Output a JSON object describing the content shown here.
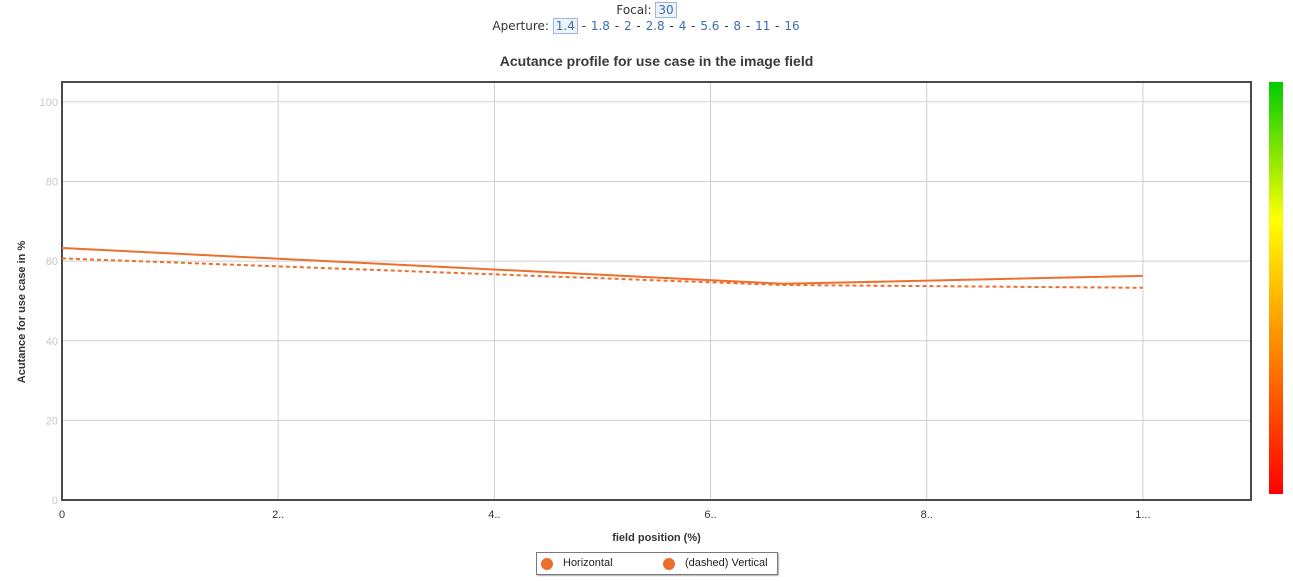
{
  "controls": {
    "focal_label": "Focal:",
    "focal_values": [
      "30"
    ],
    "aperture_label": "Aperture:",
    "aperture_values": [
      "1.4",
      "1.8",
      "2",
      "2.8",
      "4",
      "5.6",
      "8",
      "11",
      "16"
    ],
    "aperture_selected": "1.4",
    "separator": "-"
  },
  "chart_data": {
    "type": "line",
    "title": "Acutance profile for use case in the image field",
    "xlabel": "field position (%)",
    "ylabel": "Acutance for use case in %",
    "x_tick_labels": [
      "0",
      "2..",
      "4..",
      "6..",
      "8..",
      "1..."
    ],
    "x_ticks": [
      0,
      20,
      40,
      60,
      80,
      100
    ],
    "xlim": [
      0,
      110
    ],
    "y_ticks": [
      0,
      20,
      40,
      60,
      80,
      100
    ],
    "ylim": [
      0,
      105
    ],
    "grid": true,
    "series": [
      {
        "name": "Horizontal",
        "color": "#ee6f2d",
        "dashed": false,
        "x": [
          0,
          66.7,
          100
        ],
        "y": [
          63.3,
          54.3,
          56.3
        ]
      },
      {
        "name": "(dashed) Vertical",
        "color": "#ee6f2d",
        "dashed": true,
        "x": [
          0,
          66.7,
          100
        ],
        "y": [
          60.7,
          54.0,
          53.3
        ]
      }
    ],
    "color_scale": [
      "#ff0000",
      "#ff8000",
      "#ffff00",
      "#00cc00"
    ],
    "legend_position": "bottom"
  }
}
